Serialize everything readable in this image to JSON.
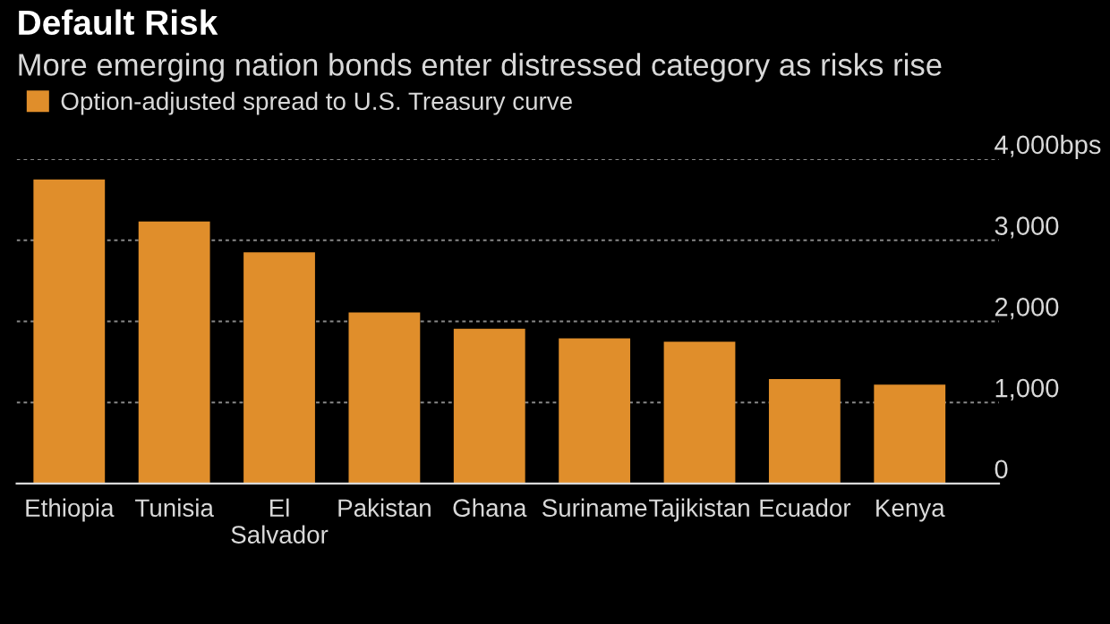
{
  "chart_data": {
    "type": "bar",
    "title": "Default Risk",
    "subtitle": "More emerging nation bonds enter distressed category as risks rise",
    "categories": [
      "Ethiopia",
      "Tunisia",
      "El\nSalvador",
      "Pakistan",
      "Ghana",
      "Suriname",
      "Tajikistan",
      "Ecuador",
      "Kenya"
    ],
    "series": [
      {
        "name": "Option-adjusted spread to U.S. Treasury curve",
        "color": "#e08e2b",
        "values": [
          3750,
          3230,
          2850,
          2110,
          1910,
          1790,
          1750,
          1290,
          1220
        ]
      }
    ],
    "ylim": [
      0,
      4000
    ],
    "yticks": [
      0,
      {
        "value": 1000,
        "label": "1,000"
      },
      {
        "value": 2000,
        "label": "2,000"
      },
      {
        "value": 3000,
        "label": "3,000"
      },
      {
        "value": 4000,
        "label": "4,000bps"
      }
    ],
    "grid": "y",
    "legend": "top left"
  }
}
